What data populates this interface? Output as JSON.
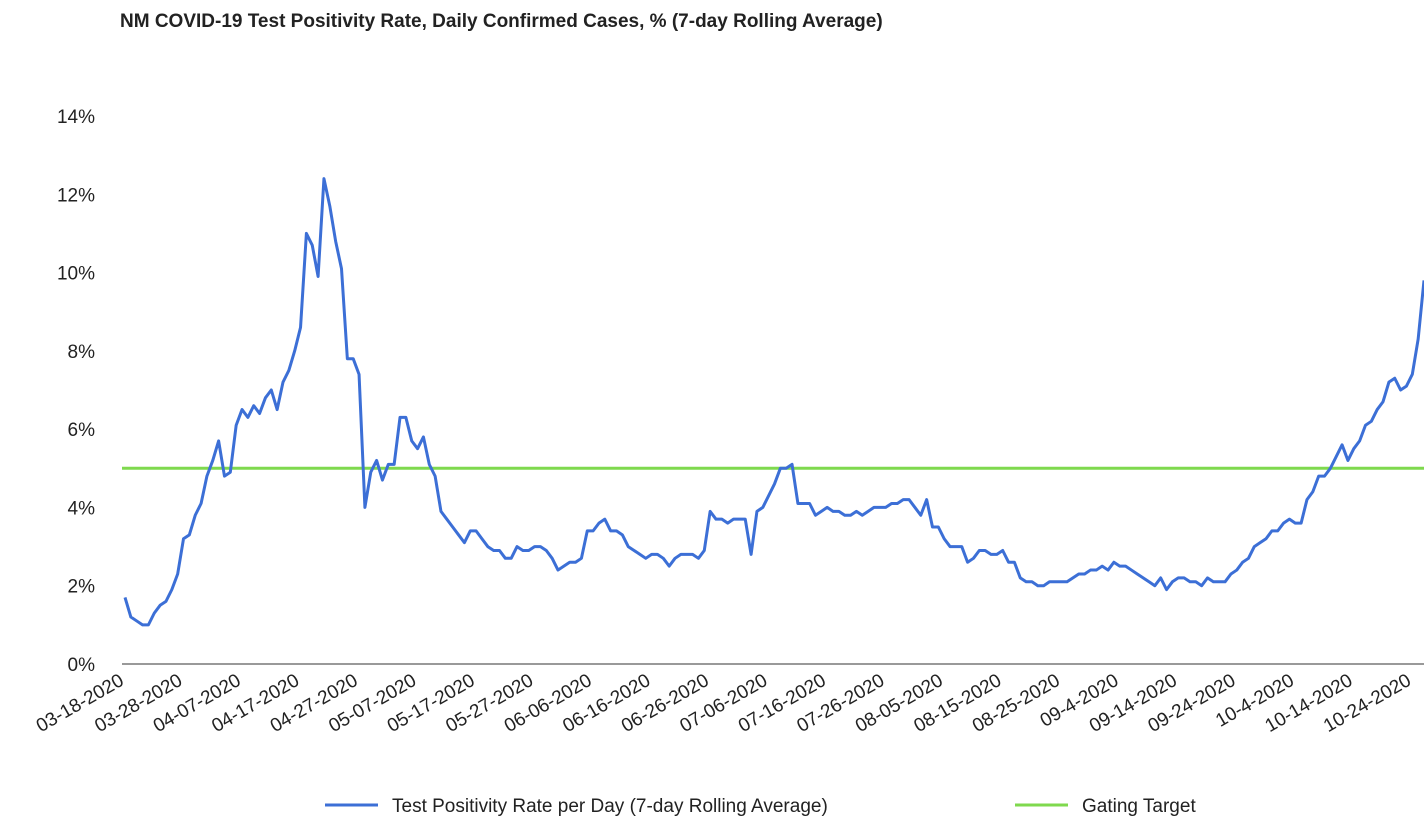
{
  "chart_data": {
    "type": "line",
    "title": "NM COVID-19 Test Positivity Rate, Daily Confirmed Cases, % (7-day Rolling Average)",
    "categories": [
      "03-18-2020",
      null,
      null,
      null,
      null,
      null,
      null,
      null,
      null,
      null,
      "03-28-2020",
      null,
      null,
      null,
      null,
      null,
      null,
      null,
      null,
      null,
      "04-07-2020",
      null,
      null,
      null,
      null,
      null,
      null,
      null,
      null,
      null,
      "04-17-2020",
      null,
      null,
      null,
      null,
      null,
      null,
      null,
      null,
      null,
      "04-27-2020",
      null,
      null,
      null,
      null,
      null,
      null,
      null,
      null,
      null,
      "05-07-2020",
      null,
      null,
      null,
      null,
      null,
      null,
      null,
      null,
      null,
      "05-17-2020",
      null,
      null,
      null,
      null,
      null,
      null,
      null,
      null,
      null,
      "05-27-2020",
      null,
      null,
      null,
      null,
      null,
      null,
      null,
      null,
      null,
      "06-06-2020",
      null,
      null,
      null,
      null,
      null,
      null,
      null,
      null,
      null,
      "06-16-2020",
      null,
      null,
      null,
      null,
      null,
      null,
      null,
      null,
      null,
      "06-26-2020",
      null,
      null,
      null,
      null,
      null,
      null,
      null,
      null,
      null,
      "07-06-2020",
      null,
      null,
      null,
      null,
      null,
      null,
      null,
      null,
      null,
      "07-16-2020",
      null,
      null,
      null,
      null,
      null,
      null,
      null,
      null,
      null,
      "07-26-2020",
      null,
      null,
      null,
      null,
      null,
      null,
      null,
      null,
      null,
      "08-05-2020",
      null,
      null,
      null,
      null,
      null,
      null,
      null,
      null,
      null,
      "08-15-2020",
      null,
      null,
      null,
      null,
      null,
      null,
      null,
      null,
      null,
      "08-25-2020",
      null,
      null,
      null,
      null,
      null,
      null,
      null,
      null,
      null,
      "09-4-2020",
      null,
      null,
      null,
      null,
      null,
      null,
      null,
      null,
      null,
      "09-14-2020",
      null,
      null,
      null,
      null,
      null,
      null,
      null,
      null,
      null,
      "09-24-2020",
      null,
      null,
      null,
      null,
      null,
      null,
      null,
      null,
      null,
      "10-4-2020",
      null,
      null,
      null,
      null,
      null,
      null,
      null,
      null,
      null,
      "10-14-2020",
      null,
      null,
      null,
      null,
      null,
      null,
      null,
      null,
      null,
      "10-24-2020",
      null,
      null
    ],
    "series": [
      {
        "name": "Test Positivity Rate per Day (7-day Rolling Average)",
        "color": "#3c6fd6",
        "values": [
          1.7,
          1.2,
          1.1,
          1.0,
          1.0,
          1.3,
          1.5,
          1.6,
          1.9,
          2.3,
          3.2,
          3.3,
          3.8,
          4.1,
          4.8,
          5.2,
          5.7,
          4.8,
          4.9,
          6.1,
          6.5,
          6.3,
          6.6,
          6.4,
          6.8,
          7.0,
          6.5,
          7.2,
          7.5,
          8.0,
          8.6,
          11.0,
          10.7,
          9.9,
          12.4,
          11.7,
          10.8,
          10.1,
          7.8,
          7.8,
          7.4,
          4.0,
          4.9,
          5.2,
          4.7,
          5.1,
          5.1,
          6.3,
          6.3,
          5.7,
          5.5,
          5.8,
          5.1,
          4.8,
          3.9,
          3.7,
          3.5,
          3.3,
          3.1,
          3.4,
          3.4,
          3.2,
          3.0,
          2.9,
          2.9,
          2.7,
          2.7,
          3.0,
          2.9,
          2.9,
          3.0,
          3.0,
          2.9,
          2.7,
          2.4,
          2.5,
          2.6,
          2.6,
          2.7,
          3.4,
          3.4,
          3.6,
          3.7,
          3.4,
          3.4,
          3.3,
          3.0,
          2.9,
          2.8,
          2.7,
          2.8,
          2.8,
          2.7,
          2.5,
          2.7,
          2.8,
          2.8,
          2.8,
          2.7,
          2.9,
          3.9,
          3.7,
          3.7,
          3.6,
          3.7,
          3.7,
          3.7,
          2.8,
          3.9,
          4.0,
          4.3,
          4.6,
          5.0,
          5.0,
          5.1,
          4.1,
          4.1,
          4.1,
          3.8,
          3.9,
          4.0,
          3.9,
          3.9,
          3.8,
          3.8,
          3.9,
          3.8,
          3.9,
          4.0,
          4.0,
          4.0,
          4.1,
          4.1,
          4.2,
          4.2,
          4.0,
          3.8,
          4.2,
          3.5,
          3.5,
          3.2,
          3.0,
          3.0,
          3.0,
          2.6,
          2.7,
          2.9,
          2.9,
          2.8,
          2.8,
          2.9,
          2.6,
          2.6,
          2.2,
          2.1,
          2.1,
          2.0,
          2.0,
          2.1,
          2.1,
          2.1,
          2.1,
          2.2,
          2.3,
          2.3,
          2.4,
          2.4,
          2.5,
          2.4,
          2.6,
          2.5,
          2.5,
          2.4,
          2.3,
          2.2,
          2.1,
          2.0,
          2.2,
          1.9,
          2.1,
          2.2,
          2.2,
          2.1,
          2.1,
          2.0,
          2.2,
          2.1,
          2.1,
          2.1,
          2.3,
          2.4,
          2.6,
          2.7,
          3.0,
          3.1,
          3.2,
          3.4,
          3.4,
          3.6,
          3.7,
          3.6,
          3.6,
          4.2,
          4.4,
          4.8,
          4.8,
          5.0,
          5.3,
          5.6,
          5.2,
          5.5,
          5.7,
          6.1,
          6.2,
          6.5,
          6.7,
          7.2,
          7.3,
          7.0,
          7.1,
          7.4,
          8.3,
          9.8
        ]
      }
    ],
    "target": {
      "name": "Gating Target",
      "color": "#7fd94e",
      "value": 5
    },
    "ylim": [
      0,
      14
    ],
    "yticks": [
      {
        "value": 0,
        "label": "0%"
      },
      {
        "value": 2,
        "label": "2%"
      },
      {
        "value": 4,
        "label": "4%"
      },
      {
        "value": 6,
        "label": "6%"
      },
      {
        "value": 8,
        "label": "8%"
      },
      {
        "value": 10,
        "label": "10%"
      },
      {
        "value": 12,
        "label": "12%"
      },
      {
        "value": 14,
        "label": "14%"
      }
    ],
    "legend": "bottom"
  }
}
